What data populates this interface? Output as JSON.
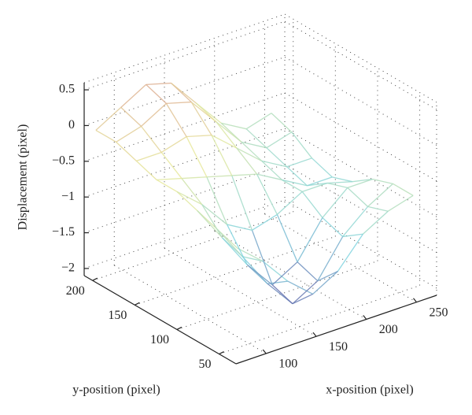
{
  "chart_data": {
    "type": "surface3d",
    "zlabel": "Displacement (pixel)",
    "xlabel": "x-position (pixel)",
    "ylabel": "y-position (pixel)",
    "xlim": [
      70,
      270
    ],
    "ylim": [
      30,
      210
    ],
    "zlim": [
      -2.1,
      0.6
    ],
    "xticks": [
      100,
      150,
      200,
      250
    ],
    "yticks": [
      50,
      100,
      150,
      200
    ],
    "zticks": [
      {
        "value": -2,
        "label": "−2"
      },
      {
        "value": -1.5,
        "label": "−1.5"
      },
      {
        "value": -1,
        "label": "−1"
      },
      {
        "value": -0.5,
        "label": "−0.5"
      },
      0,
      0.5
    ],
    "grid": true,
    "colormap": [
      "#5a4a9c",
      "#7fd3df",
      "#e6e89a",
      "#d88a8a"
    ],
    "x": [
      80,
      105,
      130,
      155,
      180,
      205,
      230,
      255
    ],
    "y": [
      40,
      64,
      88,
      112,
      136,
      160,
      184,
      208
    ],
    "z": [
      [
        -0.6,
        -0.9,
        -1.3,
        -1.6,
        -1.4,
        -1.0,
        -0.8,
        -0.7
      ],
      [
        -0.5,
        -1.0,
        -1.5,
        -1.9,
        -1.7,
        -1.2,
        -0.9,
        -0.7
      ],
      [
        -0.4,
        -0.9,
        -1.4,
        -1.8,
        -1.6,
        -1.1,
        -0.8,
        -0.8
      ],
      [
        -0.3,
        -0.6,
        -1.0,
        -1.2,
        -1.1,
        -0.9,
        -0.9,
        -1.0
      ],
      [
        -0.3,
        -0.4,
        -0.5,
        -0.6,
        -0.7,
        -0.9,
        -1.1,
        -1.1
      ],
      [
        -0.2,
        -0.2,
        -0.1,
        -0.2,
        -0.5,
        -0.8,
        -1.0,
        -1.0
      ],
      [
        -0.1,
        0.0,
        0.2,
        0.1,
        -0.3,
        -0.7,
        -0.9,
        -0.8
      ],
      [
        -0.1,
        0.1,
        0.3,
        0.2,
        -0.2,
        -0.6,
        -0.8,
        -0.7
      ]
    ]
  }
}
